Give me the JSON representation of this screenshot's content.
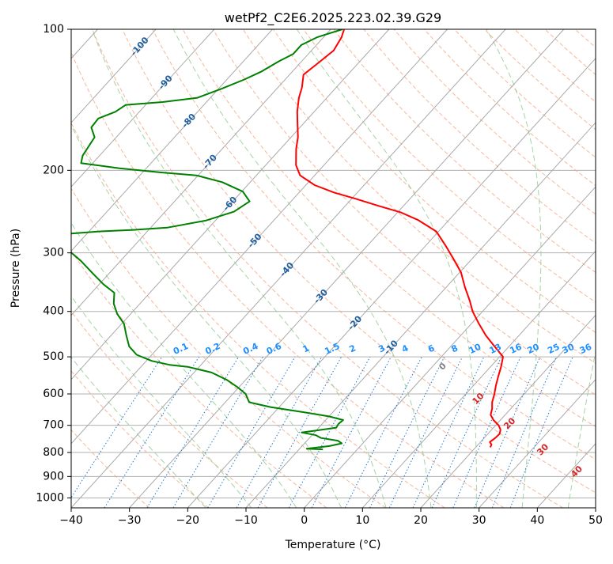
{
  "chart_data": {
    "type": "line",
    "title": "wetPf2_C2E6.2025.223.02.39.G29",
    "xlabel": "Temperature (°C)",
    "ylabel": "Pressure (hPa)",
    "xlim": [
      -40,
      50
    ],
    "ylim": [
      1050,
      100
    ],
    "y_scale": "log",
    "skew_deg_per_decade": 73,
    "grid": true,
    "x_ticks": [
      -40,
      -30,
      -20,
      -10,
      0,
      10,
      20,
      30,
      40,
      50
    ],
    "y_ticks": [
      100,
      200,
      300,
      400,
      500,
      600,
      700,
      800,
      900,
      1000
    ],
    "series": [
      {
        "name": "",
        "color": "#ff0000",
        "points": [
          [
            22.5,
            780
          ],
          [
            22.3,
            770
          ],
          [
            21.6,
            760
          ],
          [
            21.9,
            745
          ],
          [
            22.0,
            730
          ],
          [
            21.5,
            715
          ],
          [
            20.5,
            700
          ],
          [
            18.8,
            682
          ],
          [
            17.5,
            665
          ],
          [
            16.8,
            645
          ],
          [
            15.8,
            625
          ],
          [
            14.9,
            600
          ],
          [
            13.8,
            575
          ],
          [
            12.8,
            550
          ],
          [
            11.8,
            525
          ],
          [
            10.6,
            500
          ],
          [
            7.5,
            475
          ],
          [
            4.3,
            450
          ],
          [
            1.3,
            425
          ],
          [
            -1.7,
            400
          ],
          [
            -3.8,
            380
          ],
          [
            -6.8,
            355
          ],
          [
            -9.8,
            330
          ],
          [
            -13.0,
            310
          ],
          [
            -16.5,
            290
          ],
          [
            -20.4,
            270
          ],
          [
            -25.4,
            255
          ],
          [
            -29.4,
            246
          ],
          [
            -34.4,
            238
          ],
          [
            -39.3,
            230
          ],
          [
            -44.0,
            223
          ],
          [
            -48.5,
            215
          ],
          [
            -52.5,
            205
          ],
          [
            -54.8,
            195
          ],
          [
            -57.3,
            180
          ],
          [
            -58.8,
            170
          ],
          [
            -60.8,
            160
          ],
          [
            -62.9,
            150
          ],
          [
            -64.8,
            140
          ],
          [
            -65.9,
            133
          ],
          [
            -67.6,
            125
          ],
          [
            -66.9,
            118
          ],
          [
            -66.2,
            111
          ],
          [
            -66.9,
            104
          ],
          [
            -67.7,
            100
          ]
        ]
      },
      {
        "name": "",
        "color": "#008000",
        "points": [
          [
            -5.9,
            788
          ],
          [
            -8.8,
            785
          ],
          [
            -5.3,
            775
          ],
          [
            -3.6,
            765
          ],
          [
            -4.7,
            755
          ],
          [
            -8.0,
            745
          ],
          [
            -9.3,
            735
          ],
          [
            -12.2,
            725
          ],
          [
            -10.0,
            718
          ],
          [
            -7.0,
            708
          ],
          [
            -7.2,
            695
          ],
          [
            -7.0,
            682
          ],
          [
            -10.0,
            670
          ],
          [
            -15.5,
            655
          ],
          [
            -21.5,
            640
          ],
          [
            -25.9,
            625
          ],
          [
            -27.8,
            600
          ],
          [
            -30.3,
            580
          ],
          [
            -33.2,
            560
          ],
          [
            -37.0,
            540
          ],
          [
            -42.0,
            525
          ],
          [
            -45.4,
            520
          ],
          [
            -49.1,
            510
          ],
          [
            -52.6,
            495
          ],
          [
            -55.2,
            475
          ],
          [
            -57.4,
            450
          ],
          [
            -59.6,
            425
          ],
          [
            -62.3,
            405
          ],
          [
            -64.5,
            385
          ],
          [
            -66.1,
            365
          ],
          [
            -69.3,
            350
          ],
          [
            -72.8,
            332
          ],
          [
            -76.8,
            312
          ],
          [
            -80.9,
            295
          ],
          [
            -83.8,
            282
          ],
          [
            -83.0,
            273
          ],
          [
            -78.3,
            270
          ],
          [
            -72.6,
            268
          ],
          [
            -67.2,
            265
          ],
          [
            -61.7,
            256
          ],
          [
            -58.2,
            245
          ],
          [
            -57.1,
            233
          ],
          [
            -59.8,
            222
          ],
          [
            -64.8,
            212
          ],
          [
            -70.3,
            205
          ],
          [
            -77.0,
            202
          ],
          [
            -84.6,
            198
          ],
          [
            -92.0,
            193
          ],
          [
            -92.9,
            186
          ],
          [
            -93.7,
            170
          ],
          [
            -95.8,
            162
          ],
          [
            -96.0,
            155
          ],
          [
            -94.1,
            150
          ],
          [
            -93.4,
            145
          ],
          [
            -87.5,
            143
          ],
          [
            -82.2,
            140
          ],
          [
            -79.5,
            134
          ],
          [
            -77.0,
            128
          ],
          [
            -75.3,
            123
          ],
          [
            -73.9,
            117
          ],
          [
            -72.6,
            113
          ],
          [
            -72.6,
            108
          ],
          [
            -71.1,
            104
          ],
          [
            -68.0,
            100
          ]
        ]
      }
    ],
    "isotherm_labels": [
      {
        "text": "-100",
        "T": -100,
        "p": 109
      },
      {
        "text": "-90",
        "T": -90,
        "p": 130
      },
      {
        "text": "-80",
        "T": -80,
        "p": 157
      },
      {
        "text": "-70",
        "T": -70,
        "p": 192
      },
      {
        "text": "-60",
        "T": -60,
        "p": 236
      },
      {
        "text": "-50",
        "T": -50,
        "p": 283
      },
      {
        "text": "-40",
        "T": -40,
        "p": 326
      },
      {
        "text": "-30",
        "T": -30,
        "p": 372
      },
      {
        "text": "-20",
        "T": -20,
        "p": 424
      },
      {
        "text": "-10",
        "T": -10,
        "p": 478
      }
    ],
    "mixing_ratio_labels": [
      {
        "text": "0.1",
        "x": -21
      },
      {
        "text": "0.2",
        "x": -15.5
      },
      {
        "text": "0.4",
        "x": -9
      },
      {
        "text": "0.6",
        "x": -5
      },
      {
        "text": "1",
        "x": 0.5
      },
      {
        "text": "1.5",
        "x": 5
      },
      {
        "text": "2",
        "x": 8.5
      },
      {
        "text": "3",
        "x": 13.5
      },
      {
        "text": "4",
        "x": 17.5
      },
      {
        "text": "6",
        "x": 22
      },
      {
        "text": "8",
        "x": 26
      },
      {
        "text": "10",
        "x": 29.5
      },
      {
        "text": "13",
        "x": 33
      },
      {
        "text": "16",
        "x": 36.5
      },
      {
        "text": "20",
        "x": 39.5
      },
      {
        "text": "25",
        "x": 43
      },
      {
        "text": "30",
        "x": 45.5
      },
      {
        "text": "36",
        "x": 48.5
      }
    ],
    "moist_adiabat_labels": [
      {
        "text": "0",
        "x": 23.8,
        "p": 525,
        "color": "#808080"
      },
      {
        "text": "10",
        "x": 29.9,
        "p": 615,
        "color": "#d62728"
      },
      {
        "text": "20",
        "x": 35.3,
        "p": 695,
        "color": "#d62728"
      },
      {
        "text": "30",
        "x": 41.0,
        "p": 790,
        "color": "#d62728"
      },
      {
        "text": "40",
        "x": 46.8,
        "p": 880,
        "color": "#d62728"
      }
    ],
    "colors": {
      "temperature": "#ff0000",
      "dewpoint": "#008000",
      "isotherm": "#a9a9a9",
      "dry_adiabat": "#f4a582",
      "moist_adiabat": "#8fc98f",
      "mixing_ratio": "#1f77d4",
      "isotherm_label": "#1f5fa0",
      "mixing_label": "#1e90ff"
    }
  }
}
